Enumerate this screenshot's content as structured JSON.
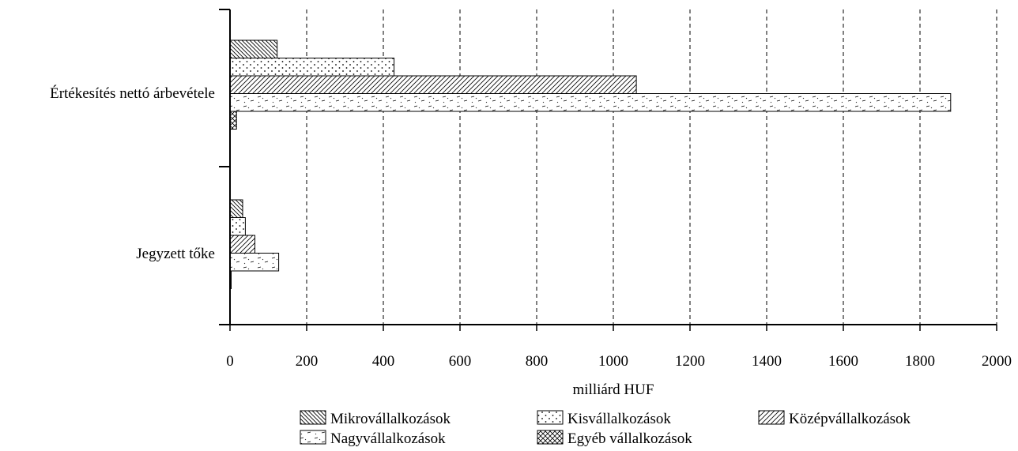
{
  "chart_data": {
    "type": "bar",
    "orientation": "horizontal",
    "categories": [
      "Értékesítés nettó árbevétele",
      "Jegyzett tőke"
    ],
    "series": [
      {
        "name": "Mikrovállalkozások",
        "values": [
          123,
          33
        ],
        "pattern": "diag-dense"
      },
      {
        "name": "Kisvállalkozások",
        "values": [
          428,
          40
        ],
        "pattern": "dots"
      },
      {
        "name": "Középvállalkozások",
        "values": [
          1060,
          65
        ],
        "pattern": "diag-sparse"
      },
      {
        "name": "Nagyvállalkozások",
        "values": [
          1880,
          127
        ],
        "pattern": "dashes"
      },
      {
        "name": "Egyéb vállalkozások",
        "values": [
          17,
          3
        ],
        "pattern": "crosshatch"
      }
    ],
    "xlabel": "milliárd HUF",
    "xlim": [
      0,
      2000
    ],
    "xticks": [
      0,
      200,
      400,
      600,
      800,
      1000,
      1200,
      1400,
      1600,
      1800,
      2000
    ],
    "grid": "vertical dashed",
    "legend_position": "bottom"
  }
}
